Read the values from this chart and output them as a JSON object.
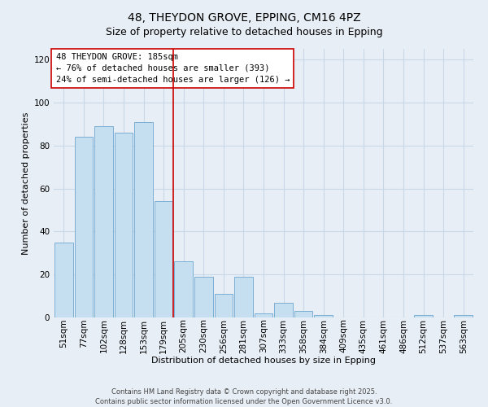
{
  "title": "48, THEYDON GROVE, EPPING, CM16 4PZ",
  "subtitle": "Size of property relative to detached houses in Epping",
  "xlabel": "Distribution of detached houses by size in Epping",
  "ylabel": "Number of detached properties",
  "categories": [
    "51sqm",
    "77sqm",
    "102sqm",
    "128sqm",
    "153sqm",
    "179sqm",
    "205sqm",
    "230sqm",
    "256sqm",
    "281sqm",
    "307sqm",
    "333sqm",
    "358sqm",
    "384sqm",
    "409sqm",
    "435sqm",
    "461sqm",
    "486sqm",
    "512sqm",
    "537sqm",
    "563sqm"
  ],
  "values": [
    35,
    84,
    89,
    86,
    91,
    54,
    26,
    19,
    11,
    19,
    2,
    7,
    3,
    1,
    0,
    0,
    0,
    0,
    1,
    0,
    1
  ],
  "bar_color": "#c5dff0",
  "bar_edge_color": "#7bafd4",
  "vline_color": "#cc0000",
  "vline_x": 5.5,
  "ylim": [
    0,
    125
  ],
  "yticks": [
    0,
    20,
    40,
    60,
    80,
    100,
    120
  ],
  "annotation_text": "48 THEYDON GROVE: 185sqm\n← 76% of detached houses are smaller (393)\n24% of semi-detached houses are larger (126) →",
  "footer_line1": "Contains HM Land Registry data © Crown copyright and database right 2025.",
  "footer_line2": "Contains public sector information licensed under the Open Government Licence v3.0.",
  "bg_color": "#e8eef5",
  "plot_bg_color": "#e8eef5",
  "grid_color": "#c8d8e8",
  "title_fontsize": 10,
  "subtitle_fontsize": 9,
  "axis_label_fontsize": 8,
  "tick_fontsize": 7.5,
  "annotation_fontsize": 7.5,
  "footer_fontsize": 6
}
